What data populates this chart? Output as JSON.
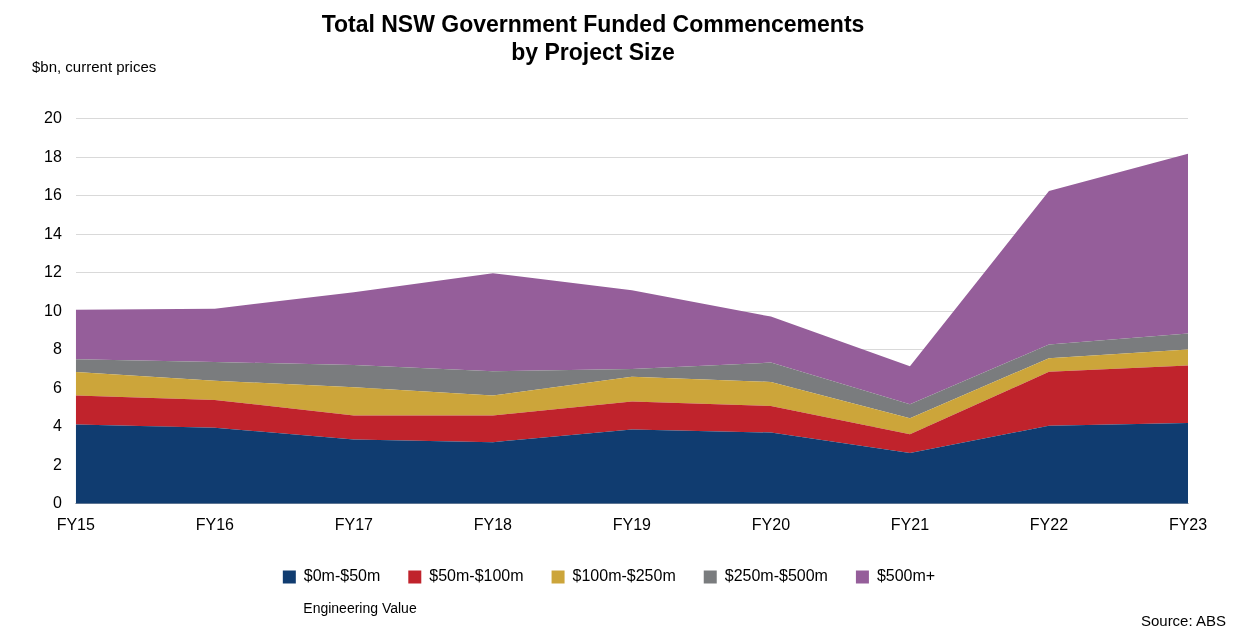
{
  "chart_data": {
    "type": "area",
    "stacked": true,
    "title": "Total NSW Government Funded Commencements\nby Project Size",
    "ylabel": "$bn, current prices",
    "xlabel": "Engineering Value",
    "annotations": [
      "Source: ABS"
    ],
    "categories": [
      "FY15",
      "FY16",
      "FY17",
      "FY18",
      "FY19",
      "FY20",
      "FY21",
      "FY22",
      "FY23"
    ],
    "series": [
      {
        "name": "$0m-$50m",
        "color": "#103c70",
        "values": [
          4.12,
          3.95,
          3.34,
          3.2,
          3.86,
          3.7,
          2.64,
          4.05,
          4.19
        ]
      },
      {
        "name": "$50m-$100m",
        "color": "#c0232c",
        "values": [
          1.5,
          1.44,
          1.25,
          1.39,
          1.45,
          1.38,
          0.97,
          2.8,
          2.99
        ]
      },
      {
        "name": "$100m-$250m",
        "color": "#cca53a",
        "values": [
          1.22,
          1.0,
          1.46,
          1.03,
          1.29,
          1.25,
          0.83,
          0.71,
          0.83
        ]
      },
      {
        "name": "$250m-$500m",
        "color": "#7a7c7e",
        "values": [
          0.67,
          0.97,
          1.16,
          1.26,
          0.4,
          1.0,
          0.73,
          0.71,
          0.83
        ]
      },
      {
        "name": "$500m+",
        "color": "#955e9a",
        "values": [
          2.57,
          2.77,
          3.77,
          5.09,
          4.09,
          2.39,
          1.97,
          7.97,
          9.33
        ]
      }
    ],
    "ylim": [
      0,
      20
    ],
    "yticks": [
      0,
      2,
      4,
      6,
      8,
      10,
      12,
      14,
      16,
      18,
      20
    ],
    "grid": "y",
    "legend": "bottom",
    "marker": "none"
  }
}
